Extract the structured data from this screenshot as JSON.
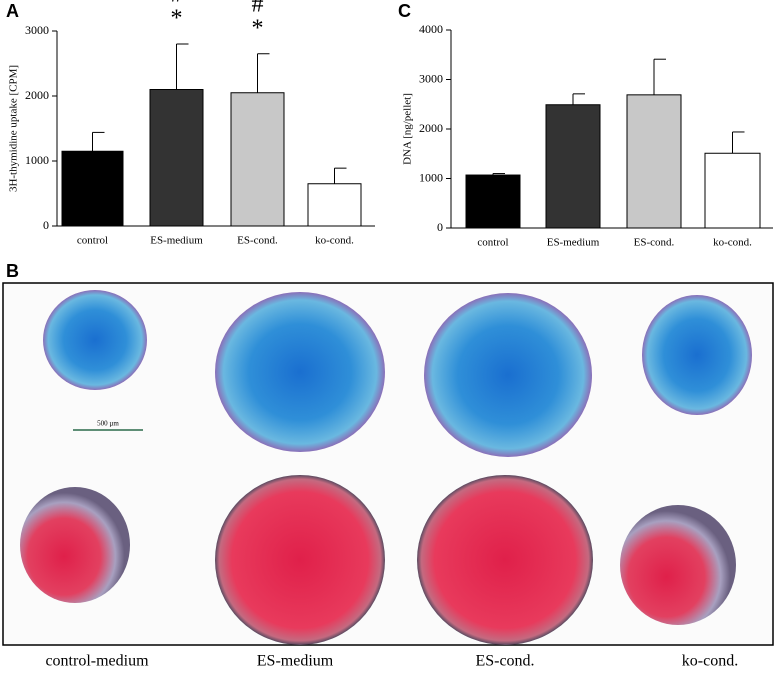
{
  "chart_data": [
    {
      "type": "bar",
      "panel": "A",
      "y_label": "3H-thymidine uptake [CPM]",
      "categories": [
        "control",
        "ES-medium",
        "ES-cond.",
        "ko-cond."
      ],
      "values": [
        1150,
        2100,
        2050,
        650
      ],
      "errors": [
        290,
        700,
        600,
        240
      ],
      "colors": [
        "#000000",
        "#333333",
        "#c8c8c8",
        "#ffffff"
      ],
      "ylim": [
        0,
        3000
      ],
      "yticks": [
        0,
        1000,
        2000,
        3000
      ],
      "annotations": [
        {
          "text": "#",
          "category": "ES-medium"
        },
        {
          "text": "*",
          "category": "ES-medium"
        },
        {
          "text": "#",
          "category": "ES-cond."
        },
        {
          "text": "*",
          "category": "ES-cond."
        }
      ]
    },
    {
      "type": "bar",
      "panel": "C",
      "y_label": "DNA [ng/pellet]",
      "categories": [
        "control",
        "ES-medium",
        "ES-cond.",
        "ko-cond."
      ],
      "values": [
        1070,
        2490,
        2690,
        1510
      ],
      "errors": [
        30,
        220,
        720,
        430
      ],
      "colors": [
        "#000000",
        "#333333",
        "#c8c8c8",
        "#ffffff"
      ],
      "ylim": [
        0,
        4000
      ],
      "yticks": [
        0,
        1000,
        2000,
        3000,
        4000
      ]
    }
  ],
  "panel_b": {
    "label": "B",
    "scale_bar": "500 µm",
    "captions": [
      "control-medium",
      "ES-medium",
      "ES-cond.",
      "ko-cond."
    ]
  }
}
